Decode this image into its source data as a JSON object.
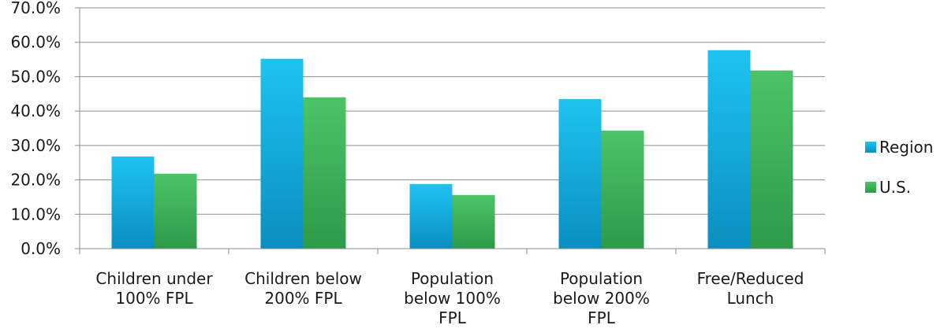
{
  "chart_data": {
    "type": "bar",
    "categories": [
      [
        "Children under",
        "100% FPL"
      ],
      [
        "Children below",
        "200% FPL"
      ],
      [
        "Population",
        "below 100%",
        "FPL"
      ],
      [
        "Population",
        "below 200%",
        "FPL"
      ],
      [
        "Free/Reduced",
        "Lunch"
      ]
    ],
    "series": [
      {
        "name": "Region",
        "values": [
          26.8,
          55.2,
          18.8,
          43.5,
          57.7
        ],
        "color_top": "#1EC3F0",
        "color_bottom": "#0A8FC0"
      },
      {
        "name": "U.S.",
        "values": [
          21.8,
          44.0,
          15.6,
          34.3,
          51.8
        ],
        "color_top": "#4CC466",
        "color_bottom": "#2E9A4A"
      }
    ],
    "ylim": [
      0,
      70
    ],
    "yticks": [
      "0.0%",
      "10.0%",
      "20.0%",
      "30.0%",
      "40.0%",
      "50.0%",
      "60.0%",
      "70.0%"
    ],
    "grid": true,
    "legend_position": "right"
  }
}
